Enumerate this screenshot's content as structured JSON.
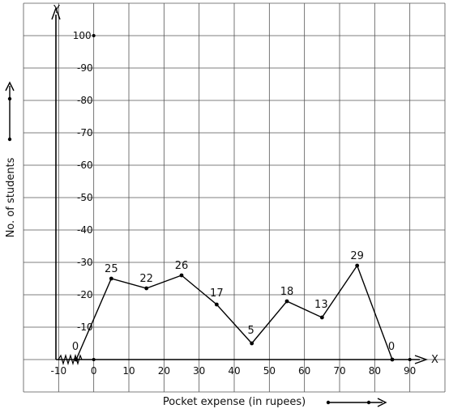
{
  "chart_data": {
    "type": "line",
    "xlabel": "Pocket expense (in rupees)",
    "ylabel": "No. of students",
    "x_axis_name": "X",
    "y_axis_name": "Y",
    "x_ticks": [
      "-10",
      "0",
      "10",
      "20",
      "30",
      "40",
      "50",
      "60",
      "70",
      "80",
      "90"
    ],
    "y_ticks": [
      "10",
      "20",
      "30",
      "40",
      "50",
      "60",
      "70",
      "80",
      "90",
      "100"
    ],
    "x": [
      -5,
      5,
      15,
      25,
      35,
      45,
      55,
      65,
      75,
      85
    ],
    "y": [
      0,
      25,
      22,
      26,
      17,
      5,
      18,
      13,
      29,
      0
    ],
    "point_labels": [
      "0",
      "25",
      "22",
      "26",
      "17",
      "5",
      "18",
      "13",
      "29",
      "0"
    ],
    "xlim": [
      -20,
      100
    ],
    "ylim": [
      -10,
      110
    ],
    "grid": true,
    "line_color": "#000000"
  }
}
